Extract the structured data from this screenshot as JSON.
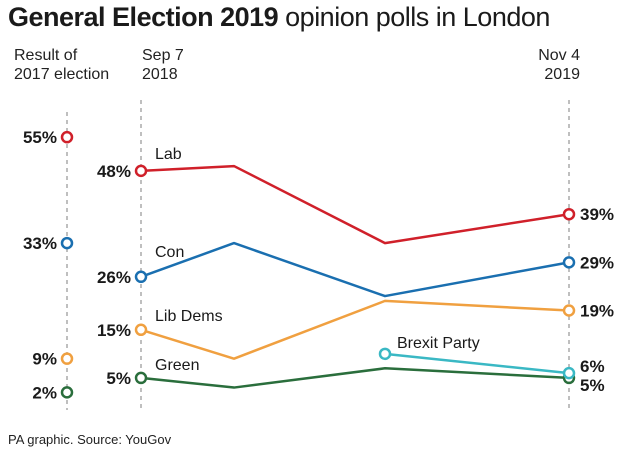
{
  "title_bold": "General Election 2019",
  "title_rest": "opinion polls in London",
  "header_2017": [
    "Result of",
    "2017 election"
  ],
  "header_start": [
    "Sep 7",
    "2018"
  ],
  "header_end": [
    "Nov 4",
    "2019"
  ],
  "source": "PA graphic. Source: YouGov",
  "chart_data": {
    "type": "line",
    "title": "General Election 2019 opinion polls in London",
    "y_unit": "%",
    "ylim": [
      0,
      58
    ],
    "x_points": 5,
    "x_labels": {
      "start": "Sep 7 2018",
      "end": "Nov 4 2019"
    },
    "result_2017": [
      {
        "party": "Lab",
        "value": 55,
        "label": "55%",
        "color": "#d0202a"
      },
      {
        "party": "Con",
        "value": 33,
        "label": "33%",
        "color": "#1a6fb0"
      },
      {
        "party": "Lib Dems",
        "value": 9,
        "label": "9%",
        "color": "#f0a040"
      },
      {
        "party": "Green",
        "value": 2,
        "label": "2%",
        "color": "#2a6e3c"
      }
    ],
    "series": [
      {
        "name": "Lab",
        "color": "#d0202a",
        "values": [
          48,
          49,
          null,
          33,
          39
        ],
        "start_label": "48%",
        "end_label": "39%"
      },
      {
        "name": "Con",
        "color": "#1a6fb0",
        "values": [
          26,
          33,
          null,
          22,
          29
        ],
        "start_label": "26%",
        "end_label": "29%"
      },
      {
        "name": "Lib Dems",
        "color": "#f0a040",
        "values": [
          15,
          9,
          null,
          21,
          19
        ],
        "start_label": "15%",
        "end_label": "19%"
      },
      {
        "name": "Green",
        "color": "#2a6e3c",
        "values": [
          5,
          3,
          null,
          7,
          5
        ],
        "start_label": "5%",
        "end_label": "5%"
      },
      {
        "name": "Brexit Party",
        "color": "#3ab8c4",
        "values": [
          null,
          null,
          null,
          10,
          6
        ],
        "start_label": "",
        "end_label": "6%"
      }
    ]
  }
}
